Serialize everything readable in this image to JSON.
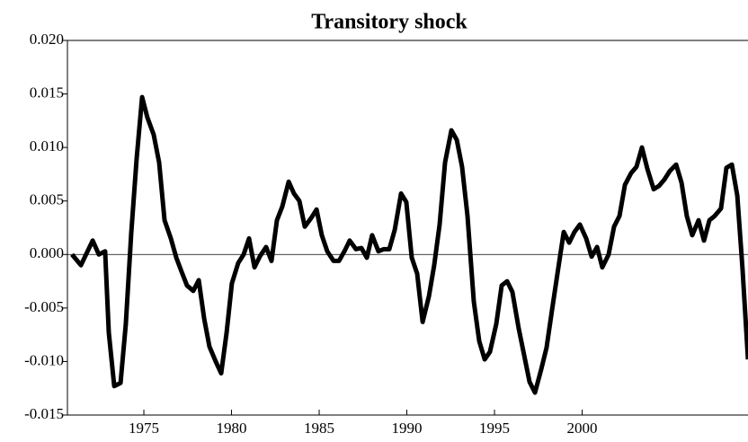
{
  "chart_data": {
    "type": "line",
    "title": "Transitory shock",
    "x": [
      1970.9,
      1971.41,
      1972.08,
      1972.43,
      1972.79,
      1973.0,
      1973.31,
      1973.67,
      1973.97,
      1974.28,
      1974.59,
      1974.9,
      1975.2,
      1975.56,
      1975.87,
      1976.18,
      1976.54,
      1976.85,
      1977.15,
      1977.46,
      1977.82,
      1978.13,
      1978.44,
      1978.74,
      1979.1,
      1979.41,
      1979.72,
      1980.02,
      1980.38,
      1980.69,
      1981.0,
      1981.31,
      1981.61,
      1981.97,
      1982.28,
      1982.59,
      1982.9,
      1983.26,
      1983.56,
      1983.87,
      1984.18,
      1984.54,
      1984.85,
      1985.15,
      1985.46,
      1985.82,
      1986.13,
      1986.44,
      1986.74,
      1987.1,
      1987.41,
      1987.72,
      1988.02,
      1988.38,
      1988.69,
      1989.0,
      1989.31,
      1989.67,
      1989.97,
      1990.28,
      1990.59,
      1990.9,
      1991.26,
      1991.56,
      1991.87,
      1992.18,
      1992.54,
      1992.85,
      1993.15,
      1993.46,
      1993.82,
      1994.13,
      1994.44,
      1994.74,
      1995.1,
      1995.41,
      1995.72,
      1996.02,
      1996.38,
      1996.69,
      1997.0,
      1997.31,
      1997.67,
      1997.97,
      1998.28,
      1998.59,
      1998.95,
      1999.26,
      1999.56,
      1999.87,
      2000.23,
      2000.54,
      2000.85,
      2001.15,
      2001.51,
      2001.82,
      2002.13,
      2002.44,
      2002.79,
      2003.1,
      2003.41,
      2003.72,
      2004.08,
      2004.38,
      2004.69,
      2005.0,
      2005.36,
      2005.67,
      2005.97,
      2006.28,
      2006.64,
      2006.95,
      2007.26,
      2007.56,
      2007.92,
      2008.23,
      2008.54,
      2008.85,
      2009.15,
      2009.46
    ],
    "series": [
      {
        "color": "#000000",
        "values": [
          0.0,
          -0.001,
          0.0013,
          0.0,
          0.0003,
          -0.0073,
          -0.0123,
          -0.012,
          -0.0065,
          0.002,
          0.009,
          0.0147,
          0.0128,
          0.0112,
          0.0086,
          0.0032,
          0.0015,
          -0.0003,
          -0.0016,
          -0.0029,
          -0.0034,
          -0.0024,
          -0.006,
          -0.0086,
          -0.01,
          -0.0111,
          -0.0073,
          -0.0027,
          -0.0008,
          0.0,
          0.0015,
          -0.0012,
          -0.0002,
          0.0007,
          -0.0006,
          0.0032,
          0.0045,
          0.0068,
          0.0057,
          0.005,
          0.0026,
          0.0034,
          0.0042,
          0.0018,
          0.0003,
          -0.0006,
          -0.0006,
          0.0003,
          0.0013,
          0.0005,
          0.0006,
          -0.0003,
          0.0018,
          0.0003,
          0.0005,
          0.0005,
          0.0023,
          0.0057,
          0.0049,
          -0.0003,
          -0.0018,
          -0.0063,
          -0.0039,
          -0.001,
          0.0028,
          0.0086,
          0.0116,
          0.0107,
          0.0082,
          0.0036,
          -0.0044,
          -0.0081,
          -0.0098,
          -0.0091,
          -0.0065,
          -0.0029,
          -0.0025,
          -0.0035,
          -0.0069,
          -0.0094,
          -0.0119,
          -0.0129,
          -0.0107,
          -0.0087,
          -0.0052,
          -0.0018,
          0.0021,
          0.0011,
          0.0021,
          0.0028,
          0.0015,
          -0.0002,
          0.0007,
          -0.0012,
          0.0,
          0.0026,
          0.0036,
          0.0065,
          0.0076,
          0.0082,
          0.01,
          0.008,
          0.0061,
          0.0064,
          0.007,
          0.0078,
          0.0084,
          0.0067,
          0.0036,
          0.0018,
          0.0032,
          0.0013,
          0.0032,
          0.0036,
          0.0043,
          0.0081,
          0.0084,
          0.0055,
          -0.0014,
          -0.0098
        ]
      }
    ],
    "xlim": [
      1970.64,
      2009.46
    ],
    "xticks": [
      1975,
      1980,
      1985,
      1990,
      1995,
      2000
    ],
    "ylim": [
      -0.015,
      0.02
    ],
    "yticks": [
      {
        "value": -0.015,
        "label": "-0.015"
      },
      {
        "value": -0.01,
        "label": "-0.010"
      },
      {
        "value": -0.005,
        "label": "-0.005"
      },
      {
        "value": 0,
        "label": "0.000"
      },
      {
        "value": 0.005,
        "label": "0.005"
      },
      {
        "value": 0.01,
        "label": "0.010"
      },
      {
        "value": 0.015,
        "label": "0.015"
      },
      {
        "value": 0.02,
        "label": "0.020"
      }
    ]
  }
}
